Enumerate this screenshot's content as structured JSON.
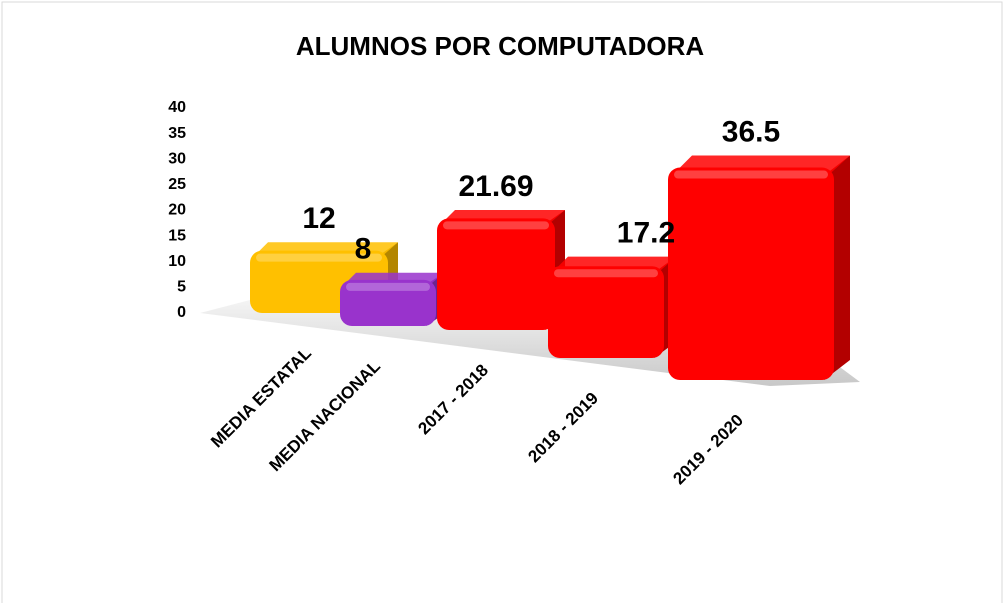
{
  "chart_data": {
    "type": "bar",
    "title": "ALUMNOS POR COMPUTADORA",
    "categories": [
      "MEDIA ESTATAL",
      "MEDIA NACIONAL",
      "2017 - 2018",
      "2018 - 2019",
      "2019 - 2020"
    ],
    "values": [
      12,
      8,
      21.69,
      17.2,
      36.5
    ],
    "colors": [
      "#ffc000",
      "#9933cc",
      "#ff0000",
      "#ff0000",
      "#ff0000"
    ],
    "ylim": [
      0,
      40
    ],
    "yticks": [
      0,
      5,
      10,
      15,
      20,
      25,
      30,
      35,
      40
    ]
  }
}
